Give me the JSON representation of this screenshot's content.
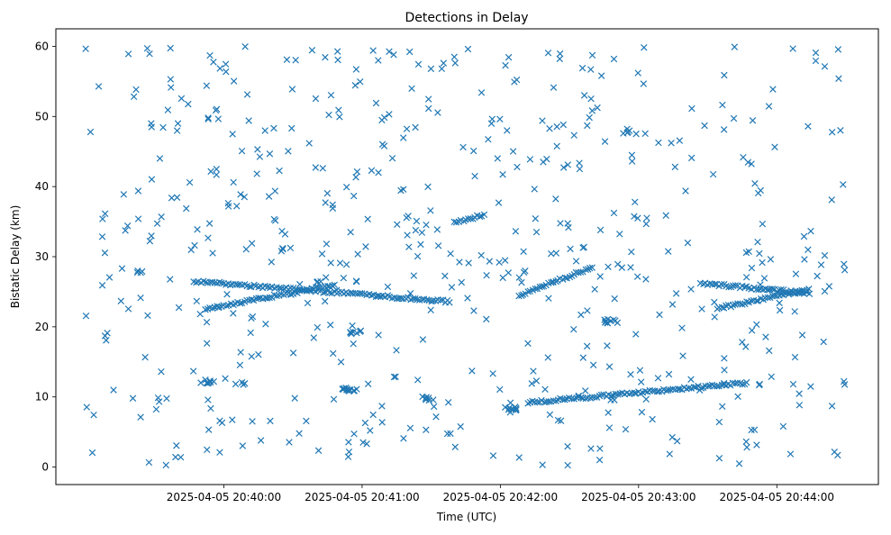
{
  "chart_data": {
    "type": "scatter",
    "title": "Detections in Delay",
    "xlabel": "Time (UTC)",
    "ylabel": "Bistatic Delay (km)",
    "marker": "x",
    "color": "#1f77b4",
    "grid": false,
    "legend": "none",
    "x_range_seconds": [
      0,
      330
    ],
    "x_ticks": [
      {
        "t": 60,
        "label": "2025-04-05 20:40:00"
      },
      {
        "t": 120,
        "label": "2025-04-05 20:41:00"
      },
      {
        "t": 180,
        "label": "2025-04-05 20:42:00"
      },
      {
        "t": 240,
        "label": "2025-04-05 20:43:00"
      },
      {
        "t": 300,
        "label": "2025-04-05 20:44:00"
      }
    ],
    "y_ticks": [
      0,
      10,
      20,
      30,
      40,
      50,
      60
    ],
    "ylim": [
      -2.5,
      62.5
    ],
    "tracks": [
      {
        "t0": 47,
        "t1": 158,
        "y0": 26.5,
        "y1": 23.6
      },
      {
        "t0": 52,
        "t1": 108,
        "y0": 22.5,
        "y1": 26.0
      },
      {
        "t0": 160,
        "t1": 173,
        "y0": 34.8,
        "y1": 36.0
      },
      {
        "t0": 188,
        "t1": 220,
        "y0": 24.5,
        "y1": 28.5
      },
      {
        "t0": 192,
        "t1": 287,
        "y0": 9.2,
        "y1": 12.0
      },
      {
        "t0": 267,
        "t1": 314,
        "y0": 26.2,
        "y1": 24.8
      },
      {
        "t0": 274,
        "t1": 314,
        "y0": 22.6,
        "y1": 25.3
      }
    ],
    "clusters": [
      {
        "t": 53,
        "y": 12.2,
        "n": 8
      },
      {
        "t": 114,
        "y": 11.0,
        "n": 12
      },
      {
        "t": 148,
        "y": 9.8,
        "n": 7
      },
      {
        "t": 184,
        "y": 8.3,
        "n": 8
      },
      {
        "t": 117,
        "y": 19.2,
        "n": 8
      },
      {
        "t": 228,
        "y": 20.8,
        "n": 10
      },
      {
        "t": 236,
        "y": 47.8,
        "n": 5
      },
      {
        "t": 24,
        "y": 27.8,
        "n": 4
      },
      {
        "t": 86,
        "y": 31.0,
        "n": 4
      },
      {
        "t": 67,
        "y": 11.8,
        "n": 4
      }
    ],
    "noise_count": 560,
    "noise_seed": 20250405
  }
}
